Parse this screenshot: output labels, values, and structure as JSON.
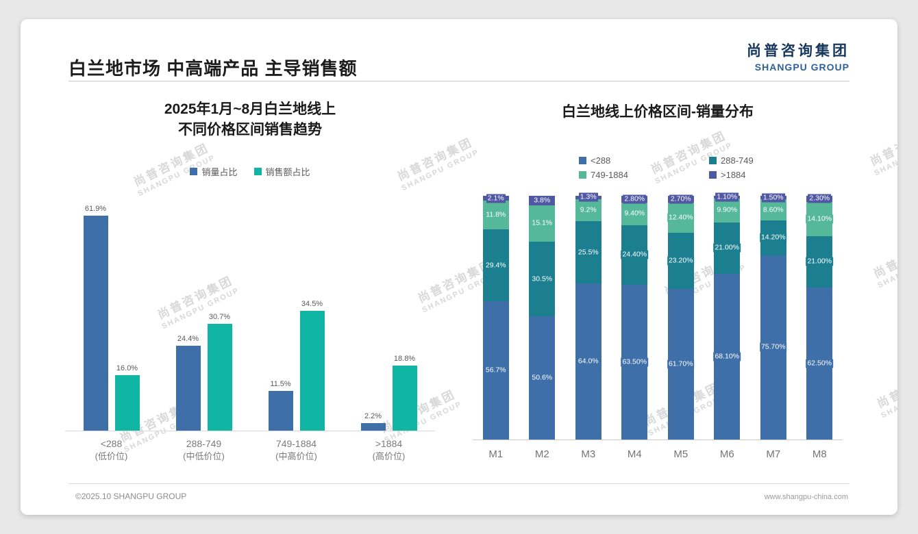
{
  "header": {
    "title": "白兰地市场 中高端产品 主导销售额",
    "logo_cn": "尚普咨询集团",
    "logo_en": "SHANGPU GROUP"
  },
  "watermark": {
    "cn": "尚普咨询集团",
    "en": "SHANGPU GROUP"
  },
  "footer": {
    "left": "©2025.10 SHANGPU GROUP",
    "right": "www.shangpu-china.com"
  },
  "chart_data": [
    {
      "type": "bar",
      "variant": "grouped",
      "title": "2025年1月~8月白兰地线上 不同价格区间销售趋势",
      "title_lines": [
        "2025年1月~8月白兰地线上",
        "不同价格区间销售趋势"
      ],
      "categories": [
        "<288",
        "288-749",
        "749-1884",
        ">1884"
      ],
      "subcategories": [
        "(低价位)",
        "(中低价位)",
        "(中高价位)",
        "(高价位)"
      ],
      "series": [
        {
          "name": "销量占比",
          "color": "#3e6fa8",
          "values": [
            61.9,
            24.4,
            11.5,
            2.2
          ],
          "labels": [
            "61.9%",
            "24.4%",
            "11.5%",
            "2.2%"
          ]
        },
        {
          "name": "销售额占比",
          "color": "#10b5a3",
          "values": [
            16.0,
            30.7,
            34.5,
            18.8
          ],
          "labels": [
            "16.0%",
            "30.7%",
            "34.5%",
            "18.8%"
          ]
        }
      ],
      "xlabel": "",
      "ylabel": "",
      "ylim": [
        0,
        65
      ],
      "grid": false,
      "legend_position": "top"
    },
    {
      "type": "bar",
      "variant": "stacked-100",
      "title": "白兰地线上价格区间-销量分布",
      "categories": [
        "M1",
        "M2",
        "M3",
        "M4",
        "M5",
        "M6",
        "M7",
        "M8"
      ],
      "series": [
        {
          "name": "<288",
          "color": "#3e6fa8",
          "values": [
            56.7,
            50.6,
            64.0,
            63.5,
            61.7,
            68.1,
            75.7,
            62.5
          ],
          "labels": [
            "56.7%",
            "50.6%",
            "64.0%",
            "63.50%",
            "61.70%",
            "68.10%",
            "75.70%",
            "62.50%"
          ]
        },
        {
          "name": "288-749",
          "color": "#1b7f90",
          "values": [
            29.4,
            30.5,
            25.5,
            24.4,
            23.2,
            21.0,
            14.2,
            21.0
          ],
          "labels": [
            "29.4%",
            "30.5%",
            "25.5%",
            "24.40%",
            "23.20%",
            "21.00%",
            "14.20%",
            "21.00%"
          ]
        },
        {
          "name": "749-1884",
          "color": "#55b899",
          "values": [
            11.8,
            15.1,
            9.2,
            9.4,
            12.4,
            9.9,
            8.6,
            14.1
          ],
          "labels": [
            "11.8%",
            "15.1%",
            "9.2%",
            "9.40%",
            "12.40%",
            "9.90%",
            "8.60%",
            "14.10%"
          ]
        },
        {
          "name": ">1884",
          "color": "#5058a3",
          "values": [
            2.1,
            3.8,
            1.3,
            2.8,
            2.7,
            1.1,
            1.5,
            2.3
          ],
          "labels": [
            "2.1%",
            "3.8%",
            "1.3%",
            "2.80%",
            "2.70%",
            "1.10%",
            "1.50%",
            "2.30%"
          ]
        }
      ],
      "xlabel": "",
      "ylabel": "",
      "ylim": [
        0,
        100
      ],
      "grid": false,
      "legend_position": "top"
    }
  ]
}
